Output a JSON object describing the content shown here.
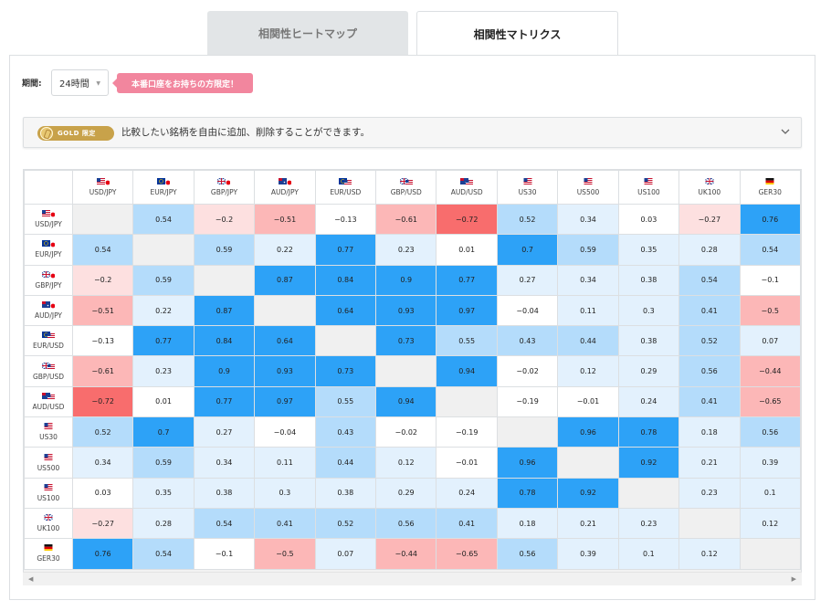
{
  "tabs": [
    {
      "label": "相関性ヒートマップ",
      "active": false
    },
    {
      "label": "相関性マトリクス",
      "active": true
    }
  ],
  "controls": {
    "period_label": "期間:",
    "period_value": "24時間",
    "promo_text": "本番口座をお持ちの方限定！"
  },
  "gold": {
    "badge_text": "GOLD 限定",
    "description": "比較したい銘柄を自由に追加、削除することができます。"
  },
  "colors": {
    "strong_positive": "#2da2f7",
    "positive": "#b4dcfb",
    "weak_positive": "#e3f1fd",
    "neutral": "#ffffff",
    "weak_negative": "#fde0e0",
    "negative": "#fcb7b7",
    "strong_negative": "#f86d6d",
    "diagonal": "#f0f0f0",
    "gold": "#c8a24a",
    "promo": "#f2869e"
  },
  "matrix": {
    "symbols": [
      {
        "label": "USD/JPY",
        "flag": "us-jp-flag"
      },
      {
        "label": "EUR/JPY",
        "flag": "eu-jp-flag"
      },
      {
        "label": "GBP/JPY",
        "flag": "gb-jp-flag"
      },
      {
        "label": "AUD/JPY",
        "flag": "au-jp-flag"
      },
      {
        "label": "EUR/USD",
        "flag": "eu-us-flag"
      },
      {
        "label": "GBP/USD",
        "flag": "gb-us-flag"
      },
      {
        "label": "AUD/USD",
        "flag": "au-us-flag"
      },
      {
        "label": "US30",
        "flag": "us-flag"
      },
      {
        "label": "US500",
        "flag": "us-flag"
      },
      {
        "label": "US100",
        "flag": "us-flag"
      },
      {
        "label": "UK100",
        "flag": "gb-flag"
      },
      {
        "label": "GER30",
        "flag": "de-flag"
      }
    ],
    "values": [
      [
        "",
        "0.54",
        "−0.2",
        "−0.51",
        "−0.13",
        "−0.61",
        "−0.72",
        "0.52",
        "0.34",
        "0.03",
        "−0.27",
        "0.76"
      ],
      [
        "0.54",
        "",
        "0.59",
        "0.22",
        "0.77",
        "0.23",
        "0.01",
        "0.7",
        "0.59",
        "0.35",
        "0.28",
        "0.54"
      ],
      [
        "−0.2",
        "0.59",
        "",
        "0.87",
        "0.84",
        "0.9",
        "0.77",
        "0.27",
        "0.34",
        "0.38",
        "0.54",
        "−0.1"
      ],
      [
        "−0.51",
        "0.22",
        "0.87",
        "",
        "0.64",
        "0.93",
        "0.97",
        "−0.04",
        "0.11",
        "0.3",
        "0.41",
        "−0.5"
      ],
      [
        "−0.13",
        "0.77",
        "0.84",
        "0.64",
        "",
        "0.73",
        "0.55",
        "0.43",
        "0.44",
        "0.38",
        "0.52",
        "0.07"
      ],
      [
        "−0.61",
        "0.23",
        "0.9",
        "0.93",
        "0.73",
        "",
        "0.94",
        "−0.02",
        "0.12",
        "0.29",
        "0.56",
        "−0.44"
      ],
      [
        "−0.72",
        "0.01",
        "0.77",
        "0.97",
        "0.55",
        "0.94",
        "",
        "−0.19",
        "−0.01",
        "0.24",
        "0.41",
        "−0.65"
      ],
      [
        "0.52",
        "0.7",
        "0.27",
        "−0.04",
        "0.43",
        "−0.02",
        "−0.19",
        "",
        "0.96",
        "0.78",
        "0.18",
        "0.56"
      ],
      [
        "0.34",
        "0.59",
        "0.34",
        "0.11",
        "0.44",
        "0.12",
        "−0.01",
        "0.96",
        "",
        "0.92",
        "0.21",
        "0.39"
      ],
      [
        "0.03",
        "0.35",
        "0.38",
        "0.3",
        "0.38",
        "0.29",
        "0.24",
        "0.78",
        "0.92",
        "",
        "0.23",
        "0.1"
      ],
      [
        "−0.27",
        "0.28",
        "0.54",
        "0.41",
        "0.52",
        "0.56",
        "0.41",
        "0.18",
        "0.21",
        "0.23",
        "",
        "0.12"
      ],
      [
        "0.76",
        "0.54",
        "−0.1",
        "−0.5",
        "0.07",
        "−0.44",
        "−0.65",
        "0.56",
        "0.39",
        "0.1",
        "0.12",
        ""
      ]
    ]
  }
}
